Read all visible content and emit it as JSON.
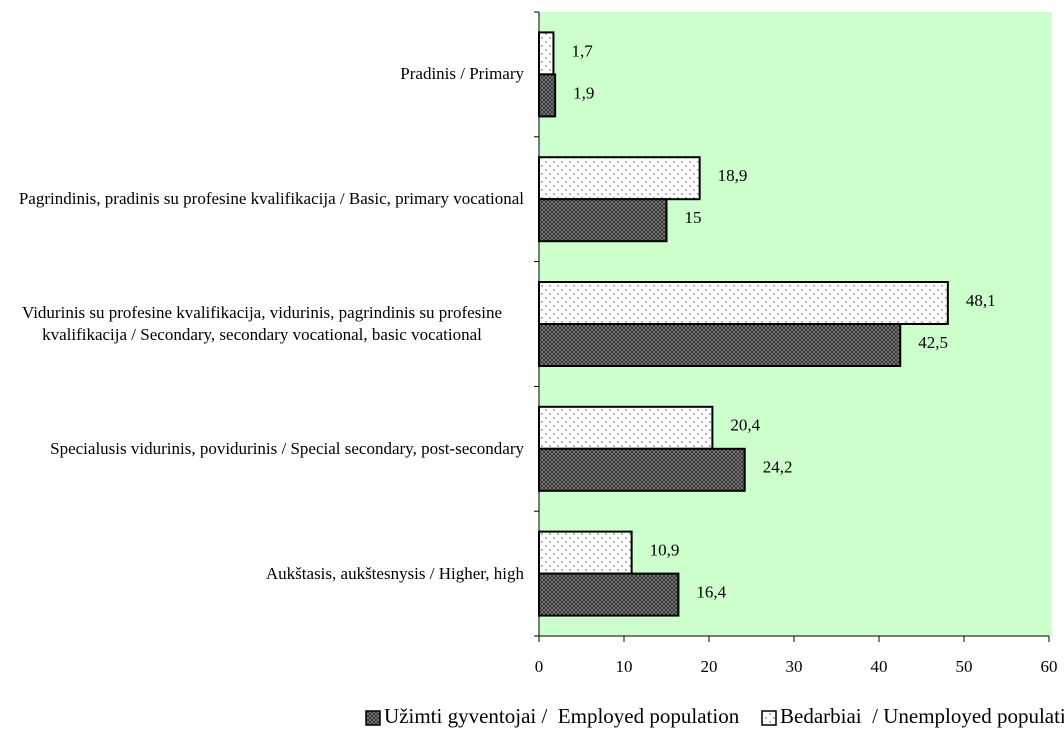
{
  "chart_data": {
    "type": "hbar",
    "categories": [
      "Pradinis / Primary",
      "Pagrindinis, pradinis su profesine kvalifikacija / Basic, primary vocational",
      "Vidurinis su profesine kvalifikacija, vidurinis, pagrindinis su profesine kvalifikacija / Secondary, secondary vocational, basic vocational",
      "Specialusis vidurinis, povidurinis / Special secondary, post-secondary",
      "Aukštasis, aukštesnysis / Higher, high"
    ],
    "series": [
      {
        "name": "Užimti gyventojai /  Employed population",
        "color": "#666666",
        "pattern": "crosshatch",
        "values": [
          1.9,
          15,
          42.5,
          24.2,
          16.4
        ],
        "value_labels": [
          "1,9",
          "15",
          "42,5",
          "24,2",
          "16,4"
        ]
      },
      {
        "name": "Bedarbiai  / Unemployed population",
        "color": "#ffffff",
        "pattern": "dots",
        "values": [
          1.7,
          18.9,
          48.1,
          20.4,
          10.9
        ],
        "value_labels": [
          "1,7",
          "18,9",
          "48,1",
          "20,4",
          "10,9"
        ]
      }
    ],
    "xlim": [
      0,
      60
    ],
    "xticks": [
      0,
      10,
      20,
      30,
      40,
      50,
      60
    ],
    "plot_background": "#ccffcc"
  }
}
